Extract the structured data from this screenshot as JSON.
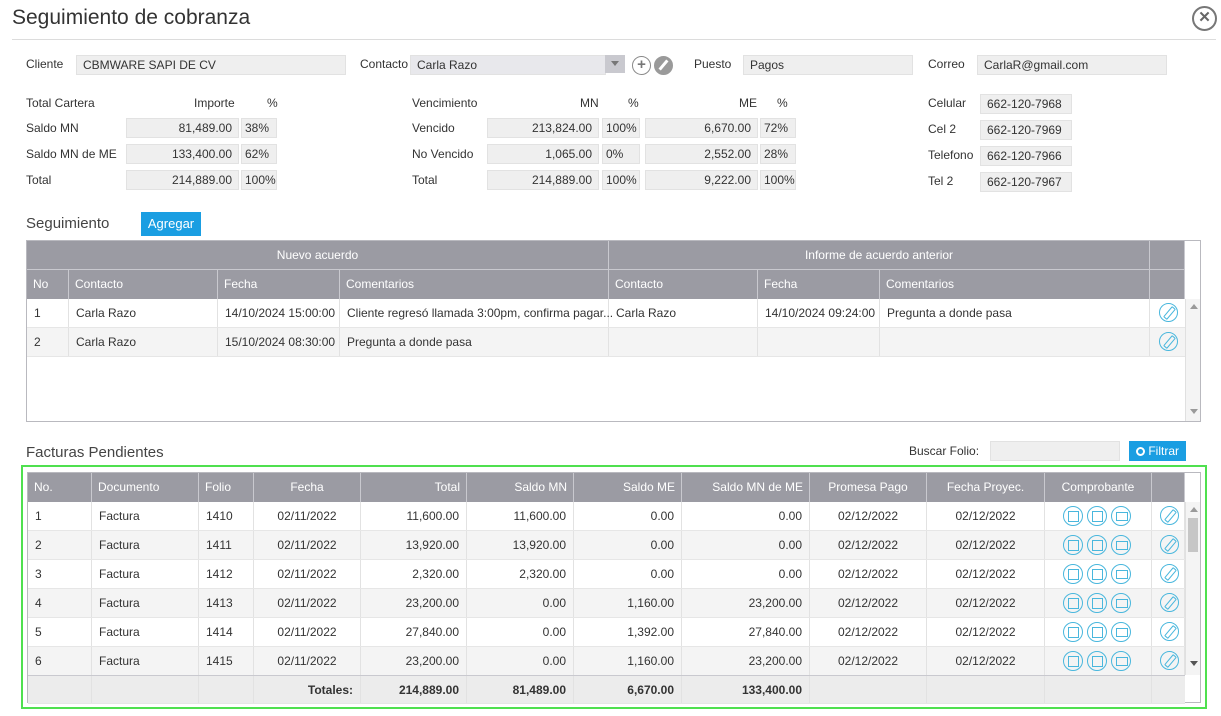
{
  "window": {
    "title": "Seguimiento de cobranza",
    "close_symbol": "✕"
  },
  "header": {
    "cliente_label": "Cliente",
    "cliente_value": "CBMWARE SAPI DE CV",
    "contacto_label": "Contacto",
    "contacto_value": "Carla Razo",
    "puesto_label": "Puesto",
    "puesto_value": "Pagos",
    "correo_label": "Correo",
    "correo_value": "CarlaR@gmail.com",
    "add_symbol": "+"
  },
  "cartera": {
    "title": "Total Cartera",
    "importe_label": "Importe",
    "pct_label": "%",
    "rows": [
      {
        "label": "Saldo MN",
        "importe": "81,489.00",
        "pct": "38%"
      },
      {
        "label": "Saldo MN de ME",
        "importe": "133,400.00",
        "pct": "62%"
      },
      {
        "label": "Total",
        "importe": "214,889.00",
        "pct": "100%"
      }
    ]
  },
  "vencimiento": {
    "title": "Vencimiento",
    "mn_label": "MN",
    "pct_label": "%",
    "me_label": "ME",
    "pct2_label": "%",
    "rows": [
      {
        "label": "Vencido",
        "mn": "213,824.00",
        "mn_pct": "100%",
        "me": "6,670.00",
        "me_pct": "72%"
      },
      {
        "label": "No Vencido",
        "mn": "1,065.00",
        "mn_pct": "0%",
        "me": "2,552.00",
        "me_pct": "28%"
      },
      {
        "label": "Total",
        "mn": "214,889.00",
        "mn_pct": "100%",
        "me": "9,222.00",
        "me_pct": "100%"
      }
    ]
  },
  "telefonos": [
    {
      "label": "Celular",
      "value": "662-120-7968"
    },
    {
      "label": "Cel 2",
      "value": "662-120-7969"
    },
    {
      "label": "Telefono",
      "value": "662-120-7966"
    },
    {
      "label": "Tel 2",
      "value": "662-120-7967"
    }
  ],
  "seguimiento": {
    "title": "Seguimiento",
    "add_button": "Agregar",
    "group_new": "Nuevo acuerdo",
    "group_prev": "Informe de acuerdo anterior",
    "columns": [
      "No",
      "Contacto",
      "Fecha",
      "Comentarios",
      "Contacto",
      "Fecha",
      "Comentarios"
    ],
    "rows": [
      {
        "no": "1",
        "contacto": "Carla Razo",
        "fecha": "14/10/2024 15:00:00",
        "comentarios": "Cliente regresó llamada 3:00pm, confirma pagar...",
        "prev_contacto": "Carla Razo",
        "prev_fecha": "14/10/2024 09:24:00",
        "prev_comentarios": "Pregunta a donde pasa"
      },
      {
        "no": "2",
        "contacto": "Carla Razo",
        "fecha": "15/10/2024 08:30:00",
        "comentarios": "Pregunta a donde pasa",
        "prev_contacto": "",
        "prev_fecha": "",
        "prev_comentarios": ""
      }
    ]
  },
  "facturas": {
    "title": "Facturas Pendientes",
    "search_label": "Buscar Folio:",
    "search_value": "",
    "filter_button": "Filtrar",
    "columns": [
      "No.",
      "Documento",
      "Folio",
      "Fecha",
      "Total",
      "Saldo MN",
      "Saldo ME",
      "Saldo MN de ME",
      "Promesa Pago",
      "Fecha Proyec.",
      "Comprobante"
    ],
    "rows": [
      {
        "no": "1",
        "doc": "Factura",
        "folio": "1410",
        "fecha": "02/11/2022",
        "total": "11,600.00",
        "saldo_mn": "11,600.00",
        "saldo_me": "0.00",
        "saldo_mn_me": "0.00",
        "promesa": "02/12/2022",
        "proyec": "02/12/2022"
      },
      {
        "no": "2",
        "doc": "Factura",
        "folio": "1411",
        "fecha": "02/11/2022",
        "total": "13,920.00",
        "saldo_mn": "13,920.00",
        "saldo_me": "0.00",
        "saldo_mn_me": "0.00",
        "promesa": "02/12/2022",
        "proyec": "02/12/2022"
      },
      {
        "no": "3",
        "doc": "Factura",
        "folio": "1412",
        "fecha": "02/11/2022",
        "total": "2,320.00",
        "saldo_mn": "2,320.00",
        "saldo_me": "0.00",
        "saldo_mn_me": "0.00",
        "promesa": "02/12/2022",
        "proyec": "02/12/2022"
      },
      {
        "no": "4",
        "doc": "Factura",
        "folio": "1413",
        "fecha": "02/11/2022",
        "total": "23,200.00",
        "saldo_mn": "0.00",
        "saldo_me": "1,160.00",
        "saldo_mn_me": "23,200.00",
        "promesa": "02/12/2022",
        "proyec": "02/12/2022"
      },
      {
        "no": "5",
        "doc": "Factura",
        "folio": "1414",
        "fecha": "02/11/2022",
        "total": "27,840.00",
        "saldo_mn": "0.00",
        "saldo_me": "1,392.00",
        "saldo_mn_me": "27,840.00",
        "promesa": "02/12/2022",
        "proyec": "02/12/2022"
      },
      {
        "no": "6",
        "doc": "Factura",
        "folio": "1415",
        "fecha": "02/11/2022",
        "total": "23,200.00",
        "saldo_mn": "0.00",
        "saldo_me": "1,160.00",
        "saldo_mn_me": "23,200.00",
        "promesa": "02/12/2022",
        "proyec": "02/12/2022"
      }
    ],
    "totals": {
      "label": "Totales:",
      "total": "214,889.00",
      "saldo_mn": "81,489.00",
      "saldo_me": "6,670.00",
      "saldo_mn_me": "133,400.00"
    }
  },
  "colors": {
    "accent": "#1a9ee2",
    "header_gray": "#9b9ba3",
    "icon_blue": "#49b7dd",
    "highlight_green": "#4fe04f"
  },
  "icons": [
    "close-icon",
    "add-contact-icon",
    "edit-contact-icon",
    "search-icon",
    "pdf-icon",
    "xml-icon",
    "mail-icon",
    "edit-icon"
  ]
}
